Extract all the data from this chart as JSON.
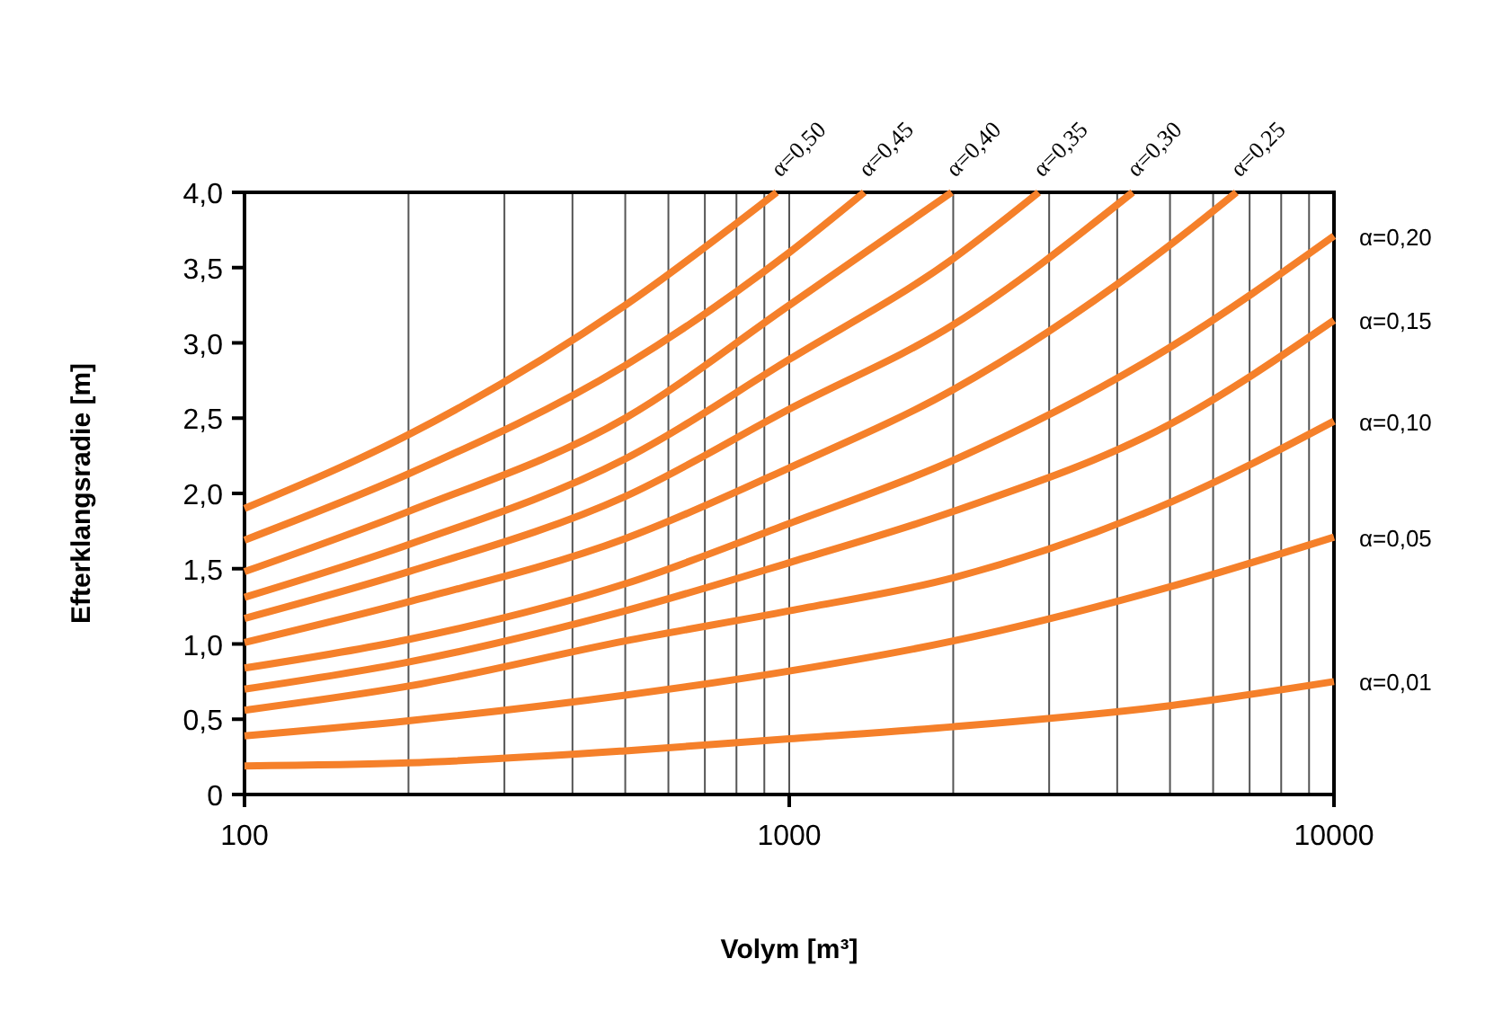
{
  "chart_data": {
    "type": "line",
    "xlabel": "Volym [m³]",
    "ylabel": "Efterklangsradie [m]",
    "log": "x",
    "grid": "x",
    "marker": "none",
    "line_style": "solid",
    "xlim": [
      100,
      10000
    ],
    "ylim": [
      0,
      4
    ],
    "xticks": [
      100,
      {
        "value": 200,
        "label": null
      },
      {
        "value": 300,
        "label": null
      },
      {
        "value": 400,
        "label": null
      },
      {
        "value": 500,
        "label": null
      },
      {
        "value": 600,
        "label": null
      },
      {
        "value": 700,
        "label": null
      },
      {
        "value": 800,
        "label": null
      },
      {
        "value": 900,
        "label": null
      },
      1000,
      {
        "value": 2000,
        "label": null
      },
      {
        "value": 3000,
        "label": null
      },
      {
        "value": 4000,
        "label": null
      },
      {
        "value": 5000,
        "label": null
      },
      {
        "value": 6000,
        "label": null
      },
      {
        "value": 7000,
        "label": null
      },
      {
        "value": 8000,
        "label": null
      },
      {
        "value": 9000,
        "label": null
      },
      10000
    ],
    "yticks": [
      0,
      {
        "value": 0.5,
        "label": "0,5"
      },
      {
        "value": 1,
        "label": "1,0"
      },
      {
        "value": 1.5,
        "label": "1,5"
      },
      {
        "value": 2,
        "label": "2,0"
      },
      {
        "value": 2.5,
        "label": "2,5"
      },
      {
        "value": 3,
        "label": "3,0"
      },
      {
        "value": 3.5,
        "label": "3,5"
      },
      {
        "value": 4,
        "label": "4,0"
      }
    ],
    "series": [
      {
        "name": "α=0,50",
        "color": "#f5802a",
        "x": [
          100,
          200,
          500,
          948
        ],
        "values": [
          1.9,
          2.39,
          3.25,
          4.0
        ]
      },
      {
        "name": "α=0,45",
        "color": "#f5802a",
        "x": [
          100,
          200,
          500,
          1000,
          1373
        ],
        "values": [
          1.69,
          2.13,
          2.85,
          3.6,
          4.0
        ]
      },
      {
        "name": "α=0,40",
        "color": "#f5802a",
        "x": [
          100,
          200,
          500,
          1000,
          1987
        ],
        "values": [
          1.48,
          1.88,
          2.5,
          3.25,
          4.0
        ]
      },
      {
        "name": "α=0,35",
        "color": "#f5802a",
        "x": [
          100,
          200,
          500,
          1000,
          2000,
          2869
        ],
        "values": [
          1.31,
          1.66,
          2.23,
          2.89,
          3.56,
          4.0
        ]
      },
      {
        "name": "α=0,30",
        "color": "#f5802a",
        "x": [
          100,
          200,
          500,
          1000,
          2000,
          4270
        ],
        "values": [
          1.17,
          1.48,
          1.98,
          2.56,
          3.12,
          4.0
        ]
      },
      {
        "name": "α=0,25",
        "color": "#f5802a",
        "x": [
          100,
          200,
          500,
          1000,
          2000,
          5000,
          6617
        ],
        "values": [
          1.01,
          1.28,
          1.7,
          2.17,
          2.69,
          3.65,
          4.0
        ]
      },
      {
        "name": "α=0,20",
        "color": "#f5802a",
        "x": [
          100,
          200,
          500,
          1000,
          2000,
          5000,
          10000
        ],
        "values": [
          0.84,
          1.03,
          1.4,
          1.8,
          2.22,
          2.97,
          3.71
        ]
      },
      {
        "name": "α=0,15",
        "color": "#f5802a",
        "x": [
          100,
          200,
          500,
          1000,
          2000,
          5000,
          10000
        ],
        "values": [
          0.7,
          0.88,
          1.22,
          1.54,
          1.88,
          2.46,
          3.15
        ]
      },
      {
        "name": "α=0,10",
        "color": "#f5802a",
        "x": [
          100,
          200,
          500,
          1000,
          2000,
          5000,
          10000
        ],
        "values": [
          0.56,
          0.72,
          1.02,
          1.22,
          1.44,
          1.94,
          2.48
        ]
      },
      {
        "name": "α=0,05",
        "color": "#f5802a",
        "x": [
          100,
          200,
          500,
          1000,
          2000,
          5000,
          10000
        ],
        "values": [
          0.39,
          0.49,
          0.66,
          0.82,
          1.02,
          1.38,
          1.71
        ]
      },
      {
        "name": "α=0,01",
        "color": "#f5802a",
        "x": [
          100,
          200,
          500,
          1000,
          2000,
          5000,
          10000
        ],
        "values": [
          0.19,
          0.21,
          0.29,
          0.37,
          0.45,
          0.59,
          0.75
        ]
      }
    ]
  }
}
